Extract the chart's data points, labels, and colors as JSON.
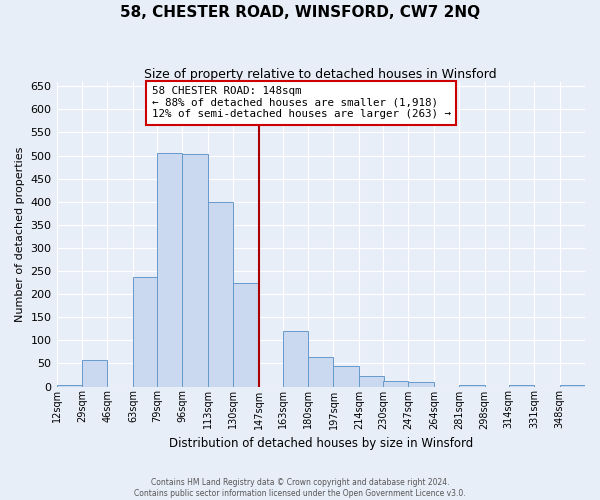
{
  "title": "58, CHESTER ROAD, WINSFORD, CW7 2NQ",
  "subtitle": "Size of property relative to detached houses in Winsford",
  "xlabel": "Distribution of detached houses by size in Winsford",
  "ylabel": "Number of detached properties",
  "footer_line1": "Contains HM Land Registry data © Crown copyright and database right 2024.",
  "footer_line2": "Contains public sector information licensed under the Open Government Licence v3.0.",
  "bin_labels": [
    "12sqm",
    "29sqm",
    "46sqm",
    "63sqm",
    "79sqm",
    "96sqm",
    "113sqm",
    "130sqm",
    "147sqm",
    "163sqm",
    "180sqm",
    "197sqm",
    "214sqm",
    "230sqm",
    "247sqm",
    "264sqm",
    "281sqm",
    "298sqm",
    "314sqm",
    "331sqm",
    "348sqm"
  ],
  "bin_left_edges": [
    12,
    29,
    46,
    63,
    79,
    96,
    113,
    130,
    147,
    163,
    180,
    197,
    214,
    230,
    247,
    264,
    281,
    298,
    314,
    331,
    348
  ],
  "bin_width": 17,
  "bar_heights": [
    3,
    57,
    0,
    237,
    505,
    503,
    400,
    225,
    0,
    120,
    63,
    45,
    23,
    13,
    10,
    0,
    3,
    0,
    3,
    0,
    3
  ],
  "bar_color": "#cad9f0",
  "bar_edge_color": "#6699cc",
  "vline_x": 147,
  "vline_color": "#aa0000",
  "ylim": [
    0,
    660
  ],
  "yticks": [
    0,
    50,
    100,
    150,
    200,
    250,
    300,
    350,
    400,
    450,
    500,
    550,
    600,
    650
  ],
  "annotation_title": "58 CHESTER ROAD: 148sqm",
  "annotation_line1": "← 88% of detached houses are smaller (1,918)",
  "annotation_line2": "12% of semi-detached houses are larger (263) →",
  "annotation_box_color": "#cc0000",
  "background_color": "#e8eef8",
  "grid_color": "#ffffff",
  "xlim_left": 12,
  "xlim_right": 365
}
